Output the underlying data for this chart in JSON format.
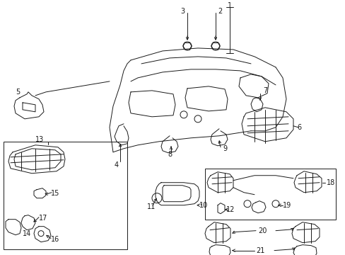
{
  "background_color": "#ffffff",
  "line_color": "#1a1a1a",
  "lw": 0.7,
  "fs": 7.0
}
